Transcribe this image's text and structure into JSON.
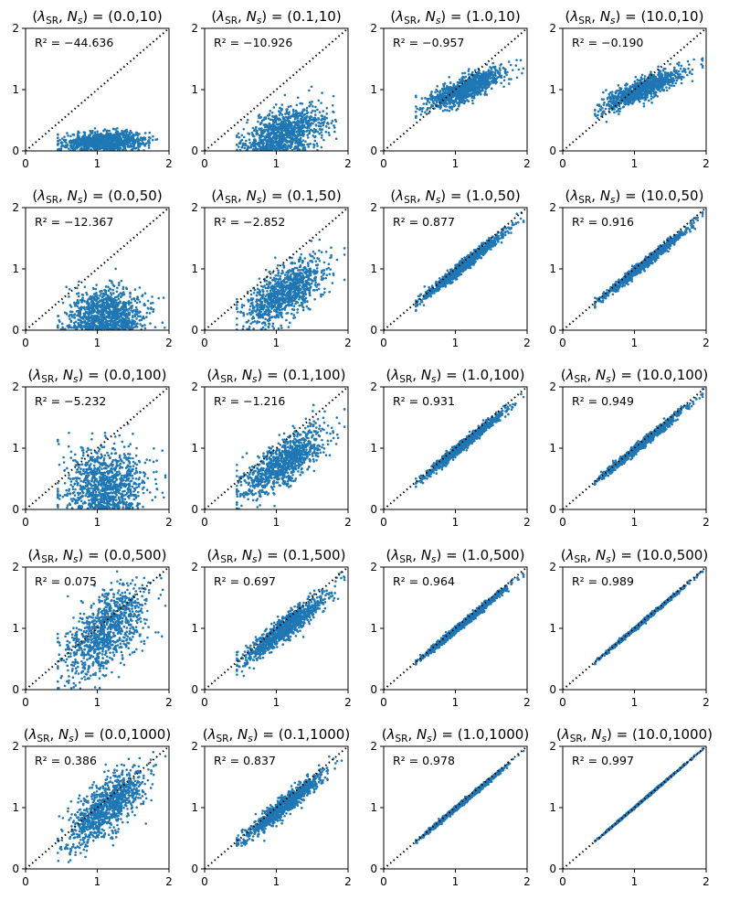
{
  "figure": {
    "marker_color": "#1f77b4",
    "reference_line_color": "#000000",
    "points_per_panel": 1000
  },
  "chart_data": [
    {
      "type": "scatter",
      "title": "(λSR, Ns) = (0.0,10)",
      "lambda_sr": "0.0",
      "n_s": "10",
      "r2_label": "R² = −44.636",
      "r2": -44.636,
      "xlim": [
        0,
        2
      ],
      "ylim": [
        0,
        2
      ],
      "xticks": [
        "0",
        "1",
        "2"
      ],
      "yticks": [
        "0",
        "1",
        "2"
      ],
      "reference_line": "y = x (dotted)",
      "point_cloud": {
        "x_mean": 1.12,
        "x_sd": 0.28,
        "x_range": [
          0.45,
          1.95
        ],
        "slope": 0.02,
        "intercept": 0.13,
        "y_noise_sd": 0.08
      }
    },
    {
      "type": "scatter",
      "title": "(λSR, Ns) = (0.1,10)",
      "lambda_sr": "0.1",
      "n_s": "10",
      "r2_label": "R² = −10.926",
      "r2": -10.926,
      "xlim": [
        0,
        2
      ],
      "ylim": [
        0,
        2
      ],
      "xticks": [
        "0",
        "1",
        "2"
      ],
      "yticks": [
        "0",
        "1",
        "2"
      ],
      "reference_line": "y = x (dotted)",
      "point_cloud": {
        "x_mean": 1.12,
        "x_sd": 0.28,
        "x_range": [
          0.45,
          1.95
        ],
        "slope": 0.35,
        "intercept": -0.12,
        "y_noise_sd": 0.2
      }
    },
    {
      "type": "scatter",
      "title": "(λSR, Ns) = (1.0,10)",
      "lambda_sr": "1.0",
      "n_s": "10",
      "r2_label": "R² = −0.957",
      "r2": -0.957,
      "xlim": [
        0,
        2
      ],
      "ylim": [
        0,
        2
      ],
      "xticks": [
        "0",
        "1",
        "2"
      ],
      "yticks": [
        "0",
        "1",
        "2"
      ],
      "reference_line": "y = x (dotted)",
      "point_cloud": {
        "x_mean": 1.12,
        "x_sd": 0.28,
        "x_range": [
          0.45,
          1.95
        ],
        "slope": 0.45,
        "intercept": 0.5,
        "y_noise_sd": 0.1
      }
    },
    {
      "type": "scatter",
      "title": "(λSR, Ns) = (10.0,10)",
      "lambda_sr": "10.0",
      "n_s": "10",
      "r2_label": "R² = −0.190",
      "r2": -0.19,
      "xlim": [
        0,
        2
      ],
      "ylim": [
        0,
        2
      ],
      "xticks": [
        "0",
        "1",
        "2"
      ],
      "yticks": [
        "0",
        "1",
        "2"
      ],
      "reference_line": "y = x (dotted)",
      "point_cloud": {
        "x_mean": 1.12,
        "x_sd": 0.28,
        "x_range": [
          0.45,
          1.95
        ],
        "slope": 0.5,
        "intercept": 0.45,
        "y_noise_sd": 0.09
      }
    },
    {
      "type": "scatter",
      "title": "(λSR, Ns) = (0.0,50)",
      "lambda_sr": "0.0",
      "n_s": "50",
      "r2_label": "R² = −12.367",
      "r2": -12.367,
      "xlim": [
        0,
        2
      ],
      "ylim": [
        0,
        2
      ],
      "xticks": [
        "0",
        "1",
        "2"
      ],
      "yticks": [
        "0",
        "1",
        "2"
      ],
      "reference_line": "y = x (dotted)",
      "point_cloud": {
        "x_mean": 1.12,
        "x_sd": 0.28,
        "x_range": [
          0.45,
          1.95
        ],
        "slope": 0.05,
        "intercept": 0.2,
        "y_noise_sd": 0.22
      }
    },
    {
      "type": "scatter",
      "title": "(λSR, Ns) = (0.1,50)",
      "lambda_sr": "0.1",
      "n_s": "50",
      "r2_label": "R² = −2.852",
      "r2": -2.852,
      "xlim": [
        0,
        2
      ],
      "ylim": [
        0,
        2
      ],
      "xticks": [
        "0",
        "1",
        "2"
      ],
      "yticks": [
        "0",
        "1",
        "2"
      ],
      "reference_line": "y = x (dotted)",
      "point_cloud": {
        "x_mean": 1.12,
        "x_sd": 0.28,
        "x_range": [
          0.45,
          1.95
        ],
        "slope": 0.6,
        "intercept": -0.05,
        "y_noise_sd": 0.2
      }
    },
    {
      "type": "scatter",
      "title": "(λSR, Ns) = (1.0,50)",
      "lambda_sr": "1.0",
      "n_s": "50",
      "r2_label": "R² = 0.877",
      "r2": 0.877,
      "xlim": [
        0,
        2
      ],
      "ylim": [
        0,
        2
      ],
      "xticks": [
        "0",
        "1",
        "2"
      ],
      "yticks": [
        "0",
        "1",
        "2"
      ],
      "reference_line": "y = x (dotted)",
      "point_cloud": {
        "x_mean": 1.12,
        "x_sd": 0.28,
        "x_range": [
          0.45,
          1.95
        ],
        "slope": 0.95,
        "intercept": 0.0,
        "y_noise_sd": 0.05
      }
    },
    {
      "type": "scatter",
      "title": "(λSR, Ns) = (10.0,50)",
      "lambda_sr": "10.0",
      "n_s": "50",
      "r2_label": "R² = 0.916",
      "r2": 0.916,
      "xlim": [
        0,
        2
      ],
      "ylim": [
        0,
        2
      ],
      "xticks": [
        "0",
        "1",
        "2"
      ],
      "yticks": [
        "0",
        "1",
        "2"
      ],
      "reference_line": "y = x (dotted)",
      "point_cloud": {
        "x_mean": 1.12,
        "x_sd": 0.28,
        "x_range": [
          0.45,
          1.95
        ],
        "slope": 0.95,
        "intercept": 0.0,
        "y_noise_sd": 0.04
      }
    },
    {
      "type": "scatter",
      "title": "(λSR, Ns) = (0.0,100)",
      "lambda_sr": "0.0",
      "n_s": "100",
      "r2_label": "R² = −5.232",
      "r2": -5.232,
      "xlim": [
        0,
        2
      ],
      "ylim": [
        0,
        2
      ],
      "xticks": [
        "0",
        "1",
        "2"
      ],
      "yticks": [
        "0",
        "1",
        "2"
      ],
      "reference_line": "y = x (dotted)",
      "point_cloud": {
        "x_mean": 1.12,
        "x_sd": 0.28,
        "x_range": [
          0.45,
          1.95
        ],
        "slope": 0.1,
        "intercept": 0.3,
        "y_noise_sd": 0.3
      }
    },
    {
      "type": "scatter",
      "title": "(λSR, Ns) = (0.1,100)",
      "lambda_sr": "0.1",
      "n_s": "100",
      "r2_label": "R² = −1.216",
      "r2": -1.216,
      "xlim": [
        0,
        2
      ],
      "ylim": [
        0,
        2
      ],
      "xticks": [
        "0",
        "1",
        "2"
      ],
      "yticks": [
        "0",
        "1",
        "2"
      ],
      "reference_line": "y = x (dotted)",
      "point_cloud": {
        "x_mean": 1.12,
        "x_sd": 0.28,
        "x_range": [
          0.45,
          1.95
        ],
        "slope": 0.7,
        "intercept": 0.0,
        "y_noise_sd": 0.18
      }
    },
    {
      "type": "scatter",
      "title": "(λSR, Ns) = (1.0,100)",
      "lambda_sr": "1.0",
      "n_s": "100",
      "r2_label": "R² = 0.931",
      "r2": 0.931,
      "xlim": [
        0,
        2
      ],
      "ylim": [
        0,
        2
      ],
      "xticks": [
        "0",
        "1",
        "2"
      ],
      "yticks": [
        "0",
        "1",
        "2"
      ],
      "reference_line": "y = x (dotted)",
      "point_cloud": {
        "x_mean": 1.12,
        "x_sd": 0.28,
        "x_range": [
          0.45,
          1.95
        ],
        "slope": 0.95,
        "intercept": 0.0,
        "y_noise_sd": 0.04
      }
    },
    {
      "type": "scatter",
      "title": "(λSR, Ns) = (10.0,100)",
      "lambda_sr": "10.0",
      "n_s": "100",
      "r2_label": "R² = 0.949",
      "r2": 0.949,
      "xlim": [
        0,
        2
      ],
      "ylim": [
        0,
        2
      ],
      "xticks": [
        "0",
        "1",
        "2"
      ],
      "yticks": [
        "0",
        "1",
        "2"
      ],
      "reference_line": "y = x (dotted)",
      "point_cloud": {
        "x_mean": 1.12,
        "x_sd": 0.28,
        "x_range": [
          0.45,
          1.95
        ],
        "slope": 0.97,
        "intercept": 0.0,
        "y_noise_sd": 0.035
      }
    },
    {
      "type": "scatter",
      "title": "(λSR, Ns) = (0.0,500)",
      "lambda_sr": "0.0",
      "n_s": "500",
      "r2_label": "R² = 0.075",
      "r2": 0.075,
      "xlim": [
        0,
        2
      ],
      "ylim": [
        0,
        2
      ],
      "xticks": [
        "0",
        "1",
        "2"
      ],
      "yticks": [
        "0",
        "1",
        "2"
      ],
      "reference_line": "y = x (dotted)",
      "point_cloud": {
        "x_mean": 1.12,
        "x_sd": 0.28,
        "x_range": [
          0.45,
          1.95
        ],
        "slope": 0.75,
        "intercept": 0.1,
        "y_noise_sd": 0.3
      }
    },
    {
      "type": "scatter",
      "title": "(λSR, Ns) = (0.1,500)",
      "lambda_sr": "0.1",
      "n_s": "500",
      "r2_label": "R² = 0.697",
      "r2": 0.697,
      "xlim": [
        0,
        2
      ],
      "ylim": [
        0,
        2
      ],
      "xticks": [
        "0",
        "1",
        "2"
      ],
      "yticks": [
        "0",
        "1",
        "2"
      ],
      "reference_line": "y = x (dotted)",
      "point_cloud": {
        "x_mean": 1.12,
        "x_sd": 0.28,
        "x_range": [
          0.45,
          1.95
        ],
        "slope": 0.9,
        "intercept": 0.0,
        "y_noise_sd": 0.1
      }
    },
    {
      "type": "scatter",
      "title": "(λSR, Ns) = (1.0,500)",
      "lambda_sr": "1.0",
      "n_s": "500",
      "r2_label": "R² = 0.964",
      "r2": 0.964,
      "xlim": [
        0,
        2
      ],
      "ylim": [
        0,
        2
      ],
      "xticks": [
        "0",
        "1",
        "2"
      ],
      "yticks": [
        "0",
        "1",
        "2"
      ],
      "reference_line": "y = x (dotted)",
      "point_cloud": {
        "x_mean": 1.12,
        "x_sd": 0.28,
        "x_range": [
          0.45,
          1.95
        ],
        "slope": 0.97,
        "intercept": 0.0,
        "y_noise_sd": 0.03
      }
    },
    {
      "type": "scatter",
      "title": "(λSR, Ns) = (10.0,500)",
      "lambda_sr": "10.0",
      "n_s": "500",
      "r2_label": "R² = 0.989",
      "r2": 0.989,
      "xlim": [
        0,
        2
      ],
      "ylim": [
        0,
        2
      ],
      "xticks": [
        "0",
        "1",
        "2"
      ],
      "yticks": [
        "0",
        "1",
        "2"
      ],
      "reference_line": "y = x (dotted)",
      "point_cloud": {
        "x_mean": 1.12,
        "x_sd": 0.28,
        "x_range": [
          0.45,
          1.95
        ],
        "slope": 0.99,
        "intercept": 0.0,
        "y_noise_sd": 0.015
      }
    },
    {
      "type": "scatter",
      "title": "(λSR, Ns) = (0.0,1000)",
      "lambda_sr": "0.0",
      "n_s": "1000",
      "r2_label": "R² = 0.386",
      "r2": 0.386,
      "xlim": [
        0,
        2
      ],
      "ylim": [
        0,
        2
      ],
      "xticks": [
        "0",
        "1",
        "2"
      ],
      "yticks": [
        "0",
        "1",
        "2"
      ],
      "reference_line": "y = x (dotted)",
      "point_cloud": {
        "x_mean": 1.12,
        "x_sd": 0.28,
        "x_range": [
          0.45,
          1.95
        ],
        "slope": 0.85,
        "intercept": 0.05,
        "y_noise_sd": 0.22
      }
    },
    {
      "type": "scatter",
      "title": "(λSR, Ns) = (0.1,1000)",
      "lambda_sr": "0.1",
      "n_s": "1000",
      "r2_label": "R² = 0.837",
      "r2": 0.837,
      "xlim": [
        0,
        2
      ],
      "ylim": [
        0,
        2
      ],
      "xticks": [
        "0",
        "1",
        "2"
      ],
      "yticks": [
        "0",
        "1",
        "2"
      ],
      "reference_line": "y = x (dotted)",
      "point_cloud": {
        "x_mean": 1.12,
        "x_sd": 0.28,
        "x_range": [
          0.45,
          1.95
        ],
        "slope": 0.93,
        "intercept": 0.0,
        "y_noise_sd": 0.08
      }
    },
    {
      "type": "scatter",
      "title": "(λSR, Ns) = (1.0,1000)",
      "lambda_sr": "1.0",
      "n_s": "1000",
      "r2_label": "R² = 0.978",
      "r2": 0.978,
      "xlim": [
        0,
        2
      ],
      "ylim": [
        0,
        2
      ],
      "xticks": [
        "0",
        "1",
        "2"
      ],
      "yticks": [
        "0",
        "1",
        "2"
      ],
      "reference_line": "y = x (dotted)",
      "point_cloud": {
        "x_mean": 1.12,
        "x_sd": 0.28,
        "x_range": [
          0.45,
          1.95
        ],
        "slope": 0.98,
        "intercept": 0.0,
        "y_noise_sd": 0.02
      }
    },
    {
      "type": "scatter",
      "title": "(λSR, Ns) = (10.0,1000)",
      "lambda_sr": "10.0",
      "n_s": "1000",
      "r2_label": "R² = 0.997",
      "r2": 0.997,
      "xlim": [
        0,
        2
      ],
      "ylim": [
        0,
        2
      ],
      "xticks": [
        "0",
        "1",
        "2"
      ],
      "yticks": [
        "0",
        "1",
        "2"
      ],
      "reference_line": "y = x (dotted)",
      "point_cloud": {
        "x_mean": 1.12,
        "x_sd": 0.28,
        "x_range": [
          0.45,
          1.95
        ],
        "slope": 1.0,
        "intercept": 0.0,
        "y_noise_sd": 0.008
      }
    }
  ]
}
